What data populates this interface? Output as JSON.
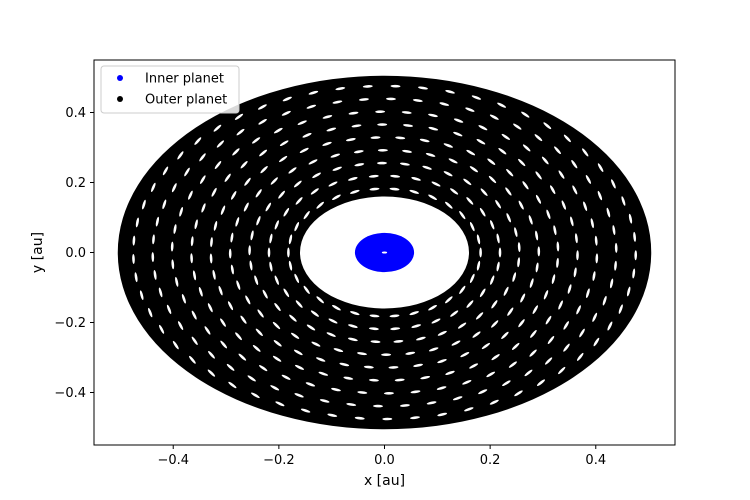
{
  "chart_data": {
    "type": "scatter",
    "xlabel": "x [au]",
    "ylabel": "y [au]",
    "xlim": [
      -0.55,
      0.55
    ],
    "ylim": [
      -0.55,
      0.55
    ],
    "x_ticks": [
      -0.4,
      -0.2,
      0.0,
      0.2,
      0.4
    ],
    "x_tick_labels": [
      "−0.4",
      "−0.2",
      "0.0",
      "0.2",
      "0.4"
    ],
    "y_ticks": [
      -0.4,
      -0.2,
      0.0,
      0.2,
      0.4
    ],
    "y_tick_labels": [
      "−0.4",
      "−0.2",
      "0.0",
      "0.2",
      "0.4"
    ],
    "grid": false,
    "legend_position": "top-left",
    "series": [
      {
        "name": "Inner planet",
        "color": "#0000ff",
        "marker": "dot",
        "x_range": [
          -0.055,
          0.055
        ],
        "y_range": [
          -0.055,
          0.055
        ],
        "radial_range_au": [
          0.005,
          0.056
        ]
      },
      {
        "name": "Outer planet",
        "color": "#000000",
        "marker": "dot",
        "x_range": [
          -0.505,
          0.505
        ],
        "y_range": [
          -0.505,
          0.505
        ],
        "radial_range_au": [
          0.16,
          0.505
        ]
      }
    ]
  }
}
